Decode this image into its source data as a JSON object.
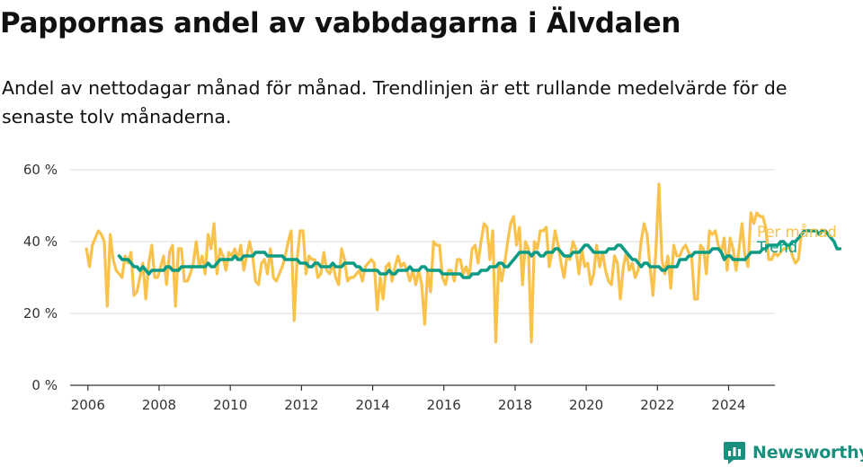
{
  "header": {
    "title": "Pappornas andel av vabbdagarna i Älvdalen",
    "subtitle": "Andel av nettodagar månad för månad. Trendlinjen är ett rullande medelvärde för de senaste tolv månaderna."
  },
  "colors": {
    "monthly": "#f8c24c",
    "trend": "#0c9b84",
    "axis": "#333333",
    "grid": "#dddddd",
    "brand": "#1b8f7d"
  },
  "brand": {
    "name": "Newsworthy",
    "icon": "bar-chart-logo-icon"
  },
  "chart_data": {
    "type": "line",
    "xlabel": "",
    "ylabel": "",
    "x_ticks": [
      "2006",
      "2008",
      "2010",
      "2012",
      "2014",
      "2016",
      "2018",
      "2020",
      "2022",
      "2024"
    ],
    "y_ticks": [
      "0 %",
      "20 %",
      "40 %",
      "60 %"
    ],
    "xlim": [
      2005.5,
      2025.3
    ],
    "ylim": [
      0,
      60
    ],
    "grid": true,
    "series": [
      {
        "name": "Per månad",
        "x_start": 2005.96,
        "x_step": 0.08333,
        "values": [
          38,
          33,
          39,
          41,
          43,
          42,
          40,
          22,
          42,
          35,
          32,
          31,
          30,
          36,
          34,
          37,
          25,
          26,
          30,
          34,
          24,
          34,
          39,
          30,
          30,
          33,
          36,
          28,
          37,
          39,
          22,
          38,
          38,
          29,
          29,
          31,
          34,
          40,
          33,
          36,
          31,
          42,
          38,
          45,
          31,
          38,
          36,
          32,
          37,
          36,
          38,
          35,
          39,
          32,
          36,
          40,
          36,
          29,
          28,
          34,
          35,
          31,
          38,
          30,
          29,
          31,
          33,
          36,
          40,
          43,
          18,
          35,
          43,
          43,
          31,
          36,
          35,
          35,
          30,
          31,
          37,
          32,
          31,
          34,
          30,
          28,
          38,
          35,
          29,
          30,
          30,
          31,
          32,
          29,
          33,
          34,
          35,
          34,
          21,
          30,
          24,
          33,
          34,
          29,
          33,
          36,
          33,
          34,
          32,
          29,
          32,
          28,
          32,
          28,
          17,
          32,
          26,
          40,
          39,
          39,
          30,
          28,
          32,
          32,
          29,
          35,
          35,
          31,
          33,
          30,
          38,
          39,
          34,
          40,
          45,
          44,
          35,
          43,
          12,
          34,
          29,
          34,
          40,
          45,
          47,
          39,
          44,
          28,
          40,
          38,
          12,
          40,
          38,
          43,
          43,
          44,
          33,
          37,
          43,
          39,
          34,
          30,
          36,
          35,
          40,
          38,
          31,
          38,
          33,
          34,
          28,
          31,
          39,
          33,
          37,
          32,
          29,
          28,
          36,
          34,
          24,
          33,
          37,
          32,
          34,
          30,
          32,
          40,
          45,
          42,
          33,
          25,
          38,
          56,
          35,
          31,
          36,
          27,
          39,
          36,
          36,
          38,
          39,
          37,
          36,
          24,
          24,
          39,
          38,
          31,
          43,
          42,
          43,
          39,
          37,
          41,
          32,
          41,
          38,
          32,
          38,
          45,
          36,
          33,
          48,
          45,
          48,
          47,
          47,
          44,
          35,
          35,
          37,
          36,
          37,
          38,
          38,
          39,
          36,
          34,
          35,
          42
        ]
      },
      {
        "name": "Trend",
        "x_start": 2006.88,
        "x_step": 0.08333,
        "values": [
          36,
          35,
          35,
          35,
          34,
          33,
          33,
          32,
          33,
          32,
          31,
          32,
          32,
          32,
          32,
          32,
          33,
          33,
          32,
          32,
          32,
          33,
          33,
          33,
          33,
          33,
          33,
          33,
          33,
          33,
          34,
          33,
          33,
          34,
          35,
          35,
          35,
          35,
          35,
          36,
          35,
          35,
          36,
          36,
          36,
          36,
          37,
          37,
          37,
          37,
          36,
          36,
          36,
          36,
          36,
          36,
          35,
          35,
          35,
          35,
          35,
          34,
          34,
          34,
          33,
          33,
          34,
          34,
          33,
          33,
          33,
          33,
          34,
          33,
          33,
          33,
          34,
          34,
          34,
          34,
          33,
          33,
          32,
          32,
          32,
          32,
          32,
          32,
          31,
          31,
          31,
          32,
          31,
          31,
          32,
          32,
          32,
          32,
          33,
          32,
          32,
          32,
          33,
          33,
          32,
          32,
          32,
          32,
          32,
          31,
          31,
          31,
          31,
          31,
          31,
          31,
          30,
          30,
          30,
          31,
          31,
          31,
          32,
          32,
          32,
          33,
          33,
          33,
          34,
          34,
          33,
          33,
          34,
          35,
          36,
          37,
          37,
          37,
          37,
          36,
          37,
          37,
          36,
          36,
          37,
          37,
          37,
          38,
          38,
          37,
          36,
          36,
          36,
          37,
          37,
          37,
          38,
          39,
          39,
          38,
          37,
          37,
          37,
          37,
          37,
          38,
          38,
          38,
          39,
          39,
          38,
          37,
          36,
          35,
          35,
          34,
          33,
          34,
          34,
          33,
          33,
          33,
          33,
          32,
          32,
          33,
          33,
          33,
          33,
          35,
          35,
          35,
          36,
          36,
          37,
          37,
          37,
          37,
          37,
          37,
          38,
          38,
          38,
          37,
          35,
          36,
          36,
          35,
          35,
          35,
          35,
          35,
          36,
          37,
          37,
          37,
          37,
          38,
          38,
          39,
          39,
          39,
          39,
          40,
          40,
          39,
          39,
          40,
          40,
          41,
          42,
          43,
          43,
          43,
          43,
          43,
          42,
          43,
          43,
          42,
          41,
          40,
          38,
          38
        ]
      }
    ]
  }
}
